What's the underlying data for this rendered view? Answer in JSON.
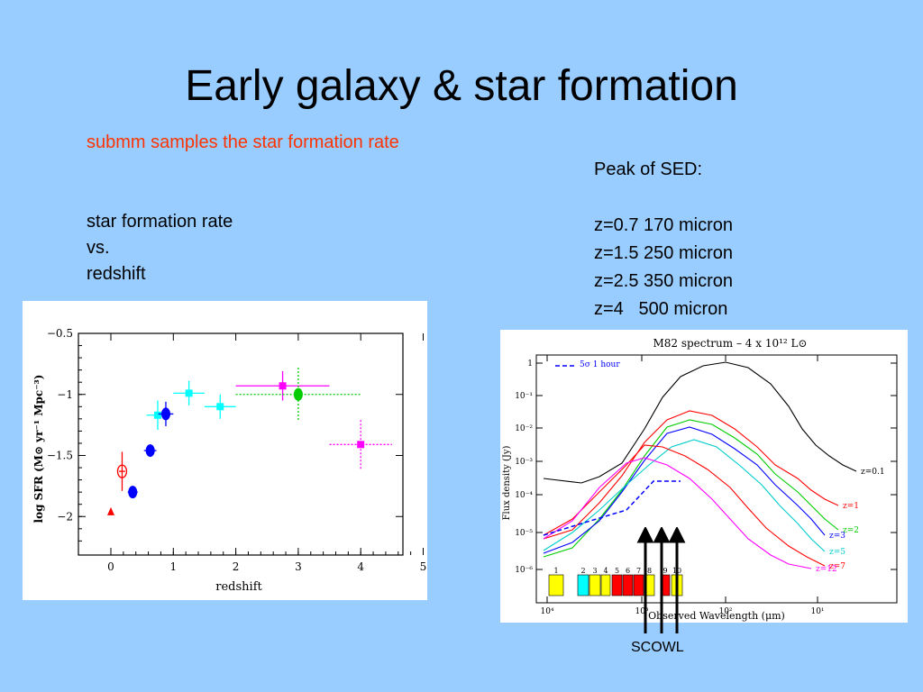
{
  "slide": {
    "title": "Early galaxy & star formation",
    "subtitle": "submm samples the star formation rate",
    "subtitle_color": "#ff3300",
    "background": "#99ccff",
    "left_text": [
      "star formation rate",
      "vs.",
      "redshift"
    ],
    "peak_title": "Peak of SED:",
    "peaks": [
      "z=0.7 170 micron",
      "z=1.5 250 micron",
      "z=2.5 350 micron",
      "z=4   500 micron"
    ],
    "scowl_label": "SCOWL"
  },
  "chart_data": [
    {
      "type": "scatter",
      "title": "",
      "xlabel": "redshift",
      "ylabel": "log SFR (M⊙ yr⁻¹ Mpc⁻³)",
      "xlim": [
        -0.2,
        5.1
      ],
      "ylim": [
        -2.35,
        -0.5
      ],
      "x_ticks": [
        "0",
        "1",
        "2",
        "3",
        "4",
        "5"
      ],
      "y_ticks": [
        "-0.5",
        "-1",
        "-1.5",
        "-2"
      ],
      "points": [
        {
          "x": 0.0,
          "y": -1.96,
          "color": "#ff0000",
          "marker": "triangle"
        },
        {
          "x": 0.18,
          "y": -1.63,
          "color": "#ff0000",
          "marker": "open-circle"
        },
        {
          "x": 0.35,
          "y": -1.8,
          "color": "#0000ff",
          "marker": "circle"
        },
        {
          "x": 0.63,
          "y": -1.46,
          "color": "#0000ff",
          "marker": "circle"
        },
        {
          "x": 0.75,
          "y": -1.17,
          "color": "#00ffff",
          "marker": "square"
        },
        {
          "x": 0.88,
          "y": -1.16,
          "color": "#0000ff",
          "marker": "circle"
        },
        {
          "x": 1.25,
          "y": -0.99,
          "color": "#00ffff",
          "marker": "square"
        },
        {
          "x": 1.75,
          "y": -1.1,
          "color": "#00ffff",
          "marker": "square"
        },
        {
          "x": 2.75,
          "y": -0.93,
          "color": "#ff00ff",
          "marker": "square"
        },
        {
          "x": 3.0,
          "y": -1.0,
          "color": "#00cc00",
          "marker": "circle"
        },
        {
          "x": 4.0,
          "y": -1.41,
          "color": "#ff00ff",
          "marker": "square"
        }
      ]
    },
    {
      "type": "line",
      "title": "M82 spectrum – 4 x 10¹² L⊙",
      "xlabel": "Observed Wavelength (μm)",
      "ylabel": "Flux density (Jy)",
      "x_scale": "log-reversed",
      "y_scale": "log",
      "x_ticks": [
        "10⁴",
        "10³",
        "10²",
        "10¹"
      ],
      "y_ticks": [
        "1",
        "10⁻¹",
        "10⁻²",
        "10⁻³",
        "10⁻⁴",
        "10⁻⁵",
        "10⁻⁶"
      ],
      "legend": "5σ 1 hour",
      "series": [
        {
          "name": "z=0.1",
          "color": "#000000"
        },
        {
          "name": "z=1",
          "color": "#ff0000"
        },
        {
          "name": "z=2",
          "color": "#00cc00"
        },
        {
          "name": "z=3",
          "color": "#0000ff"
        },
        {
          "name": "z=5",
          "color": "#00cccc"
        },
        {
          "name": "z=7",
          "color": "#ff0000"
        },
        {
          "name": "z=12",
          "color": "#ff00ff"
        }
      ],
      "band_labels": [
        "1",
        "2",
        "3",
        "4",
        "5",
        "6",
        "7",
        "8",
        "9",
        "10"
      ],
      "band_colors": [
        "#ffff00",
        "#00ffff",
        "#ffff00",
        "#ffff00",
        "#ff0000",
        "#ff0000",
        "#ff0000",
        "#ffff00",
        "#ff0000",
        "#ffff00"
      ]
    }
  ]
}
